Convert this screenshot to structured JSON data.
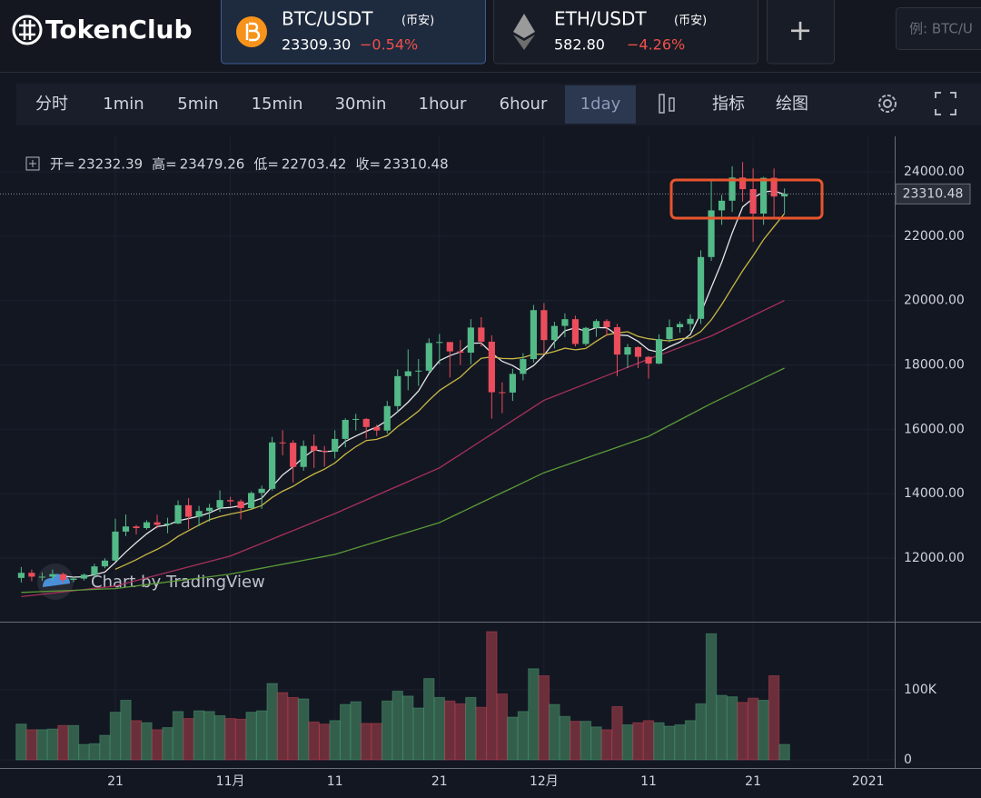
{
  "header": {
    "logo": "TokenClub",
    "tabs": [
      {
        "pair": "BTC/USDT",
        "exchange": "(币安)",
        "price": "23309.30",
        "change": "−0.54%"
      },
      {
        "pair": "ETH/USDT",
        "exchange": "(币安)",
        "price": "582.80",
        "change": "−4.26%"
      }
    ],
    "add": "+",
    "search_placeholder": "例: BTC/U"
  },
  "toolbar": {
    "intervals": [
      "分时",
      "1min",
      "5min",
      "15min",
      "30min",
      "1hour",
      "6hour",
      "1day"
    ],
    "indicators": "指标",
    "draw": "绘图"
  },
  "chart_data": {
    "type": "candlestick",
    "ohlc_labels": [
      "开=",
      "高=",
      "低=",
      "收="
    ],
    "watermark": "Chart by TradingView",
    "categories": [
      null,
      null,
      null,
      null,
      null,
      null,
      null,
      null,
      null,
      "21",
      null,
      null,
      null,
      null,
      null,
      null,
      null,
      null,
      null,
      null,
      "11月",
      null,
      null,
      null,
      null,
      null,
      null,
      null,
      null,
      null,
      "11",
      null,
      null,
      null,
      null,
      null,
      null,
      null,
      null,
      null,
      "21",
      null,
      null,
      null,
      null,
      null,
      null,
      null,
      null,
      null,
      "12月",
      null,
      null,
      null,
      null,
      null,
      null,
      null,
      null,
      null,
      "11",
      null,
      null,
      null,
      null,
      null,
      null,
      null,
      null,
      null,
      "21",
      null,
      null,
      null,
      null,
      null,
      null,
      null,
      null,
      null,
      null,
      "2021",
      null,
      null
    ],
    "open": [
      11380,
      11540,
      11420,
      11420,
      11500,
      11320,
      11360,
      11480,
      11740,
      11920,
      12820,
      12980,
      12930,
      13110,
      13030,
      13070,
      13640,
      13280,
      13460,
      13560,
      13800,
      13760,
      13550,
      14020,
      14150,
      15590,
      15580,
      14830,
      15480,
      15330,
      15300,
      15700,
      16290,
      16320,
      16070,
      15960,
      16720,
      17650,
      17800,
      17820,
      18680,
      18710,
      18420,
      18380,
      19160,
      18720,
      17150,
      17140,
      17720,
      18180,
      19700,
      18770,
      19210,
      19420,
      18650,
      19150,
      19360,
      19170,
      18320,
      18550,
      18250,
      18040,
      18800,
      19170,
      19270,
      19430,
      21350,
      22800,
      23100,
      23820,
      23460,
      22700,
      23810,
      23232.39,
      null,
      null,
      null,
      null,
      null,
      null,
      null,
      null,
      null,
      null
    ],
    "high": [
      11720,
      11640,
      11550,
      11640,
      11540,
      11420,
      11520,
      11820,
      11990,
      13220,
      13350,
      13030,
      13170,
      13340,
      13250,
      13790,
      13860,
      13620,
      13680,
      14100,
      13900,
      13820,
      14070,
      14250,
      15760,
      15970,
      15660,
      15650,
      15840,
      15480,
      15970,
      16340,
      16480,
      16350,
      16140,
      16880,
      17860,
      18480,
      18180,
      18820,
      18960,
      18700,
      18770,
      19420,
      19480,
      18920,
      17460,
      17880,
      18360,
      19860,
      19920,
      19340,
      19600,
      19530,
      19180,
      19420,
      19420,
      19270,
      18650,
      18580,
      18270,
      18950,
      19410,
      19350,
      19570,
      21560,
      23770,
      23280,
      24170,
      24300,
      24100,
      23840,
      24100,
      23479.26,
      null,
      null,
      null,
      null,
      null,
      null,
      null,
      null,
      null,
      null
    ],
    "low": [
      11240,
      11280,
      11290,
      11300,
      11220,
      11250,
      11300,
      11400,
      11680,
      11900,
      12680,
      12730,
      12880,
      12920,
      12770,
      13050,
      12900,
      12990,
      13130,
      13430,
      13620,
      13200,
      13520,
      13530,
      14090,
      15190,
      14340,
      14710,
      14800,
      14840,
      15090,
      15440,
      15960,
      15710,
      15790,
      15870,
      16540,
      17210,
      17350,
      17740,
      18020,
      17610,
      18000,
      18020,
      18570,
      16330,
      16500,
      16880,
      17520,
      18070,
      18330,
      18510,
      18860,
      18570,
      18590,
      18870,
      18900,
      17650,
      17900,
      17900,
      17570,
      18020,
      18700,
      19000,
      19050,
      19270,
      21230,
      22350,
      22750,
      23070,
      21820,
      22350,
      22600,
      22703.42,
      null,
      null,
      null,
      null,
      null,
      null,
      null,
      null,
      null,
      null
    ],
    "close": [
      11540,
      11420,
      11420,
      11500,
      11320,
      11360,
      11480,
      11740,
      11920,
      12820,
      12980,
      12930,
      13110,
      13030,
      13070,
      13640,
      13280,
      13460,
      13560,
      13800,
      13760,
      13550,
      14020,
      14150,
      15590,
      15580,
      14830,
      15480,
      15330,
      15300,
      15700,
      16290,
      16320,
      16070,
      15960,
      16720,
      17650,
      17800,
      17820,
      18680,
      18710,
      18420,
      18380,
      19160,
      18720,
      17150,
      17140,
      17720,
      18180,
      19700,
      18770,
      19210,
      19420,
      18650,
      19150,
      19360,
      19170,
      18320,
      18550,
      18250,
      18040,
      18800,
      19170,
      19270,
      19430,
      21350,
      22800,
      23100,
      23820,
      23460,
      22700,
      23810,
      23232.39,
      23310.48,
      null,
      null,
      null,
      null,
      null,
      null,
      null,
      null,
      null,
      null
    ],
    "volume": [
      51000,
      43000,
      43000,
      44000,
      49000,
      49000,
      22000,
      23000,
      35000,
      68000,
      85000,
      56000,
      53000,
      43000,
      46000,
      69000,
      59000,
      70000,
      69000,
      63000,
      59000,
      58000,
      68000,
      70000,
      109000,
      96000,
      89000,
      87000,
      54000,
      51000,
      56000,
      79000,
      83000,
      52000,
      52000,
      84000,
      98000,
      91000,
      74000,
      116000,
      89000,
      84000,
      80000,
      89000,
      75000,
      183000,
      94000,
      61000,
      69000,
      130000,
      120000,
      79000,
      62000,
      55000,
      55000,
      47000,
      43000,
      76000,
      50000,
      53000,
      56000,
      53000,
      48000,
      50000,
      56000,
      80000,
      180000,
      92000,
      90000,
      82000,
      88000,
      85000,
      120000,
      22000,
      null,
      null,
      null,
      null,
      null,
      null,
      null,
      null,
      null,
      null
    ],
    "series": [
      {
        "color": "#e6e6e6",
        "values": [
          null,
          null,
          null,
          null,
          11440,
          11404,
          11416,
          11480,
          11564,
          11864,
          12188,
          12478,
          12752,
          12974,
          13024,
          13156,
          13226,
          13296,
          13402,
          13548,
          13572,
          13626,
          13738,
          13856,
          14214,
          14578,
          14834,
          15126,
          15362,
          15304,
          15328,
          15620,
          15788,
          15936,
          16068,
          16272,
          16544,
          16840,
          17190,
          17734,
          18132,
          18286,
          18402,
          18670,
          18678,
          18366,
          18110,
          17978,
          17782,
          17978,
          18302,
          18716,
          19056,
          19150,
          19040,
          19158,
          19150,
          18930,
          18910,
          18730,
          18466,
          18392,
          18562,
          18706,
          18942,
          19604,
          20404,
          21190,
          22100,
          22906,
          23176,
          23378,
          23404,
          23302,
          null,
          null,
          null,
          null,
          null,
          null,
          null,
          null,
          null,
          null
        ]
      },
      {
        "color": "#c8b845",
        "values": [
          null,
          null,
          null,
          null,
          null,
          null,
          null,
          null,
          null,
          11652,
          11796,
          11947,
          12116,
          12269,
          12444,
          12672,
          12852,
          13024,
          13188,
          13286,
          13364,
          13426,
          13517,
          13629,
          13881,
          14075,
          14230,
          14432,
          14609,
          14759,
          14953,
          15227,
          15457,
          15649,
          15686,
          15800,
          16082,
          16314,
          16563,
          16901,
          17202,
          17415,
          17621,
          17930,
          18206,
          18249,
          18198,
          18190,
          18226,
          18328,
          18334,
          18413,
          18517,
          18466,
          18509,
          18730,
          18933,
          18993,
          19030,
          18885,
          18812,
          18771,
          18746,
          18808,
          18836,
          19035,
          19398,
          19876,
          20403,
          20924,
          21390,
          21891,
          22297,
          22701,
          null,
          null,
          null,
          null,
          null,
          null,
          null,
          null,
          null,
          null
        ]
      },
      {
        "color": "#a8315a",
        "values": [
          10800,
          10837,
          10873,
          10910,
          10947,
          10983,
          11020,
          11057,
          11093,
          11130,
          11215,
          11299,
          11384,
          11468,
          11553,
          11637,
          11722,
          11806,
          11891,
          11975,
          12060,
          12192,
          12324,
          12456,
          12588,
          12720,
          12852,
          12984,
          13116,
          13248,
          13380,
          13522,
          13664,
          13806,
          13948,
          14090,
          14232,
          14374,
          14516,
          14658,
          14800,
          15010,
          15220,
          15430,
          15640,
          15850,
          16060,
          16270,
          16480,
          16690,
          16900,
          17028,
          17156,
          17284,
          17412,
          17540,
          17668,
          17796,
          17924,
          18052,
          18180,
          18300,
          18420,
          18540,
          18660,
          18780,
          18900,
          19057,
          19214,
          19371,
          19529,
          19686,
          19843,
          20000,
          null,
          null,
          null,
          null,
          null,
          null,
          null,
          null,
          null,
          null
        ]
      },
      {
        "color": "#5a9a36",
        "values": [
          10930,
          10943,
          10957,
          10970,
          10983,
          10997,
          11010,
          11023,
          11037,
          11050,
          11091,
          11132,
          11173,
          11214,
          11255,
          11295,
          11336,
          11377,
          11418,
          11459,
          11500,
          11561,
          11622,
          11683,
          11744,
          11805,
          11866,
          11927,
          11988,
          12049,
          12110,
          12209,
          12308,
          12407,
          12506,
          12605,
          12704,
          12803,
          12902,
          13001,
          13100,
          13255,
          13410,
          13565,
          13720,
          13875,
          14030,
          14185,
          14340,
          14495,
          14650,
          14763,
          14876,
          14989,
          15102,
          15215,
          15328,
          15441,
          15554,
          15667,
          15780,
          15950,
          16120,
          16290,
          16460,
          16630,
          16800,
          16957,
          17114,
          17271,
          17429,
          17586,
          17743,
          17900,
          null,
          null,
          null,
          null,
          null,
          null,
          null,
          null,
          null,
          null
        ]
      }
    ],
    "up_color": "#53b987",
    "down_color": "#eb4d5c",
    "volume_up_color": "#335e4b",
    "volume_down_color": "#6b2f3b",
    "ylim": [
      10050,
      25100
    ],
    "yticks": [
      {
        "value": 12000,
        "label": "12000.00"
      },
      {
        "value": 14000,
        "label": "14000.00"
      },
      {
        "value": 16000,
        "label": "16000.00"
      },
      {
        "value": 18000,
        "label": "18000.00"
      },
      {
        "value": 20000,
        "label": "20000.00"
      },
      {
        "value": 22000,
        "label": "22000.00"
      },
      {
        "value": 24000,
        "label": "24000.00"
      }
    ],
    "volume_ylim": [
      0,
      192000
    ],
    "volume_yticks": [
      0,
      {
        "value": 100000,
        "label": "100K"
      }
    ],
    "grid": true
  }
}
